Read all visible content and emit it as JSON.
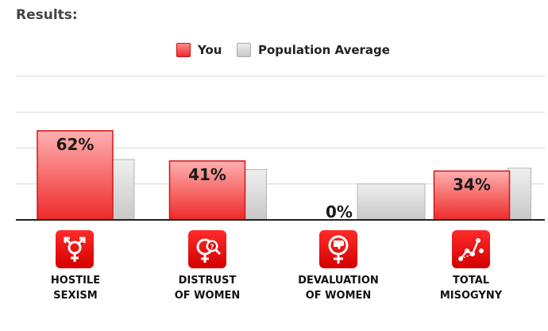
{
  "page": {
    "title": "Results:"
  },
  "legend": [
    {
      "label": "You",
      "color": "#ee2a2a"
    },
    {
      "label": "Population Average",
      "color": "#c8c8c8"
    }
  ],
  "chart_data": {
    "type": "bar",
    "categories": [
      "HOSTILE SEXISM",
      "DISTRUST OF WOMEN",
      "DEVALUATION OF WOMEN",
      "TOTAL MISOGYNY"
    ],
    "category_lines": [
      [
        "HOSTILE",
        "SEXISM"
      ],
      [
        "DISTRUST",
        "OF WOMEN"
      ],
      [
        "DEVALUATION",
        "OF WOMEN"
      ],
      [
        "TOTAL",
        "MISOGYNY"
      ]
    ],
    "icons": [
      "hostile-sexism-icon",
      "distrust-of-women-icon",
      "devaluation-of-women-icon",
      "total-misogyny-icon"
    ],
    "series": [
      {
        "name": "You",
        "values": [
          62,
          41,
          0,
          34
        ],
        "labels": [
          "62%",
          "41%",
          "0%",
          "34%"
        ],
        "color": "#ee2a2a"
      },
      {
        "name": "Population Average",
        "values": [
          42,
          35,
          25,
          36
        ],
        "color": "#c8c8c8"
      }
    ],
    "ylim": [
      0,
      100
    ],
    "grid": true,
    "legend_position": "top-center"
  }
}
